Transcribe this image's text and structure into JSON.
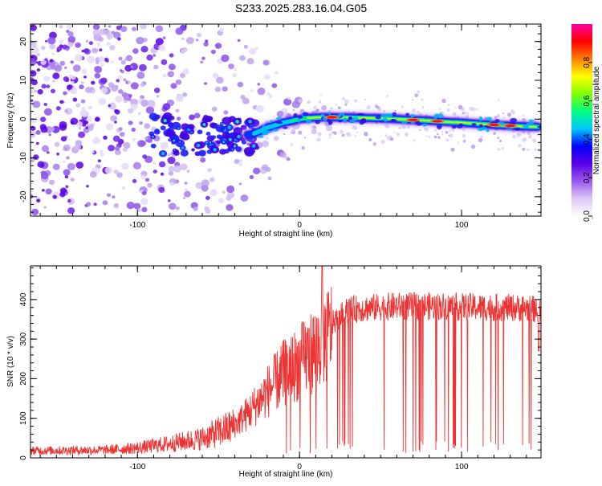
{
  "title": "S233.2025.283.16.04.G05",
  "chart_data": [
    {
      "type": "heatmap",
      "panel": "spectrogram",
      "xlabel": "Height of straight line (km)",
      "ylabel": "Frequency (Hz)",
      "xlim": [
        -166,
        149
      ],
      "ylim": [
        -25,
        24.5
      ],
      "xticks": [
        -100,
        0,
        100
      ],
      "xtick_labels": [
        "-100",
        "0",
        "100"
      ],
      "yticks": [
        -20,
        -10,
        0,
        10,
        20
      ],
      "ytick_labels": [
        "-20",
        "-10",
        "0",
        "10",
        "20"
      ],
      "ridge": {
        "x": [
          -30,
          -25,
          -20,
          -15,
          -10,
          -5,
          0,
          5,
          10,
          15,
          20,
          30,
          40,
          50,
          60,
          70,
          80,
          90,
          100,
          110,
          120,
          130,
          140,
          147
        ],
        "y": [
          -4.0,
          -3.2,
          -2.2,
          -1.6,
          -0.9,
          -0.5,
          0.0,
          0.3,
          0.4,
          0.5,
          0.5,
          0.4,
          0.3,
          0.2,
          0.0,
          -0.2,
          -0.4,
          -0.7,
          -0.9,
          -1.2,
          -1.5,
          -1.7,
          -1.9,
          -2.0
        ]
      },
      "hotspots_x": [
        20,
        70,
        85,
        120,
        130
      ],
      "colorbar": {
        "label": "Normalized spectral amplitude",
        "range": [
          0,
          1
        ],
        "ticks": [
          0.0,
          0.2,
          0.4,
          0.6,
          0.8
        ],
        "tick_labels": [
          "0.0",
          "0.2",
          "0.4",
          "0.6",
          "0.8"
        ],
        "colors": [
          "#ffffff",
          "#dcc8f5",
          "#9b59f0",
          "#5a00e6",
          "#0000ff",
          "#00c8ff",
          "#00ff80",
          "#80ff00",
          "#ffff00",
          "#ff8000",
          "#ff0000",
          "#ff00a0"
        ]
      }
    },
    {
      "type": "line",
      "panel": "snr",
      "xlabel": "Height of straight line (km)",
      "ylabel": "SNR (10 * v/v)",
      "xlim": [
        -166,
        149
      ],
      "ylim": [
        0,
        485
      ],
      "xticks": [
        -100,
        0,
        100
      ],
      "xtick_labels": [
        "-100",
        "0",
        "100"
      ],
      "yticks": [
        0,
        100,
        200,
        300,
        400
      ],
      "ytick_labels": [
        "0",
        "100",
        "200",
        "300",
        "400"
      ],
      "line_color": "#ee3333",
      "series": [
        {
          "name": "SNR",
          "envelope_x": [
            -166,
            -120,
            -100,
            -80,
            -60,
            -40,
            -30,
            -20,
            -10,
            0,
            10,
            20,
            30,
            40,
            60,
            80,
            100,
            120,
            140,
            149
          ],
          "envelope_y": [
            20,
            22,
            28,
            40,
            55,
            90,
            130,
            180,
            230,
            260,
            300,
            350,
            385,
            390,
            395,
            395,
            393,
            392,
            390,
            385
          ]
        }
      ],
      "spike_x": [
        14
      ],
      "spike_y": [
        485
      ]
    }
  ]
}
